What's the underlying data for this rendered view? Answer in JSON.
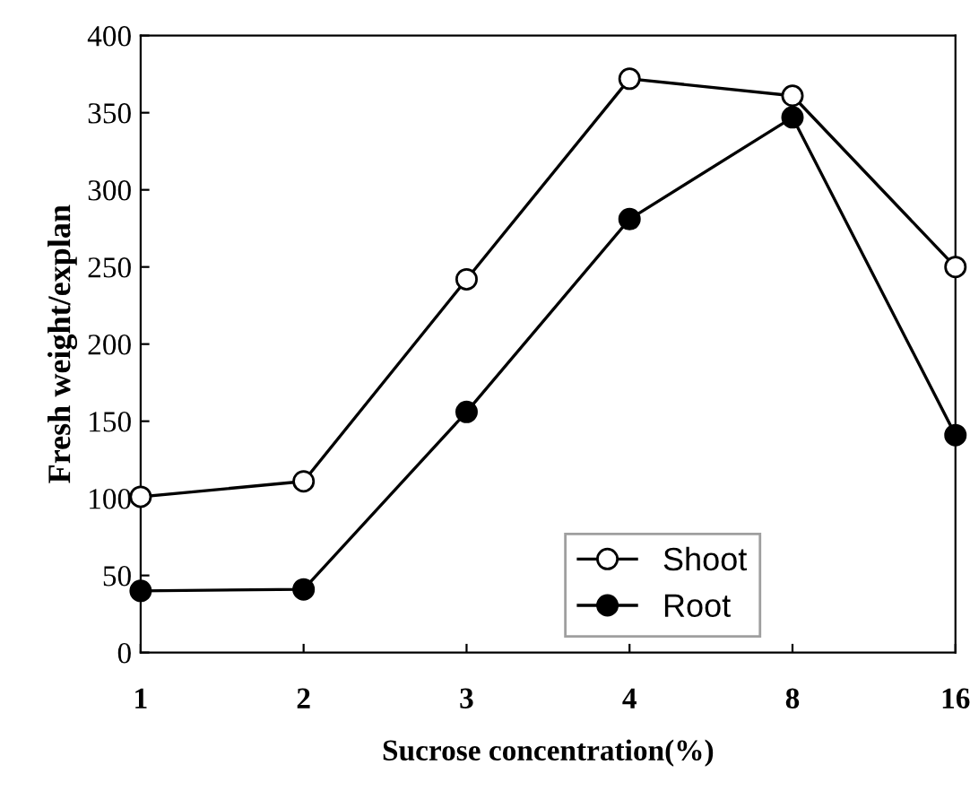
{
  "chart_data": {
    "type": "line",
    "xlabel": "Sucrose concentration(%)",
    "ylabel": "Fresh weight/explan",
    "categories": [
      "1",
      "2",
      "3",
      "4",
      "8",
      "16"
    ],
    "series": [
      {
        "name": "Shoot",
        "color": "#000000",
        "marker": "circle_open",
        "values": [
          101,
          111,
          242,
          372,
          361,
          250
        ]
      },
      {
        "name": "Root",
        "color": "#000000",
        "marker": "circle",
        "values": [
          40,
          41,
          156,
          281,
          347,
          141
        ]
      }
    ],
    "ylim": [
      0,
      400
    ],
    "yticks": [
      0,
      50,
      100,
      150,
      200,
      250,
      300,
      350,
      400
    ],
    "grid": false,
    "legend": "bottom right",
    "line_style": "solid"
  }
}
